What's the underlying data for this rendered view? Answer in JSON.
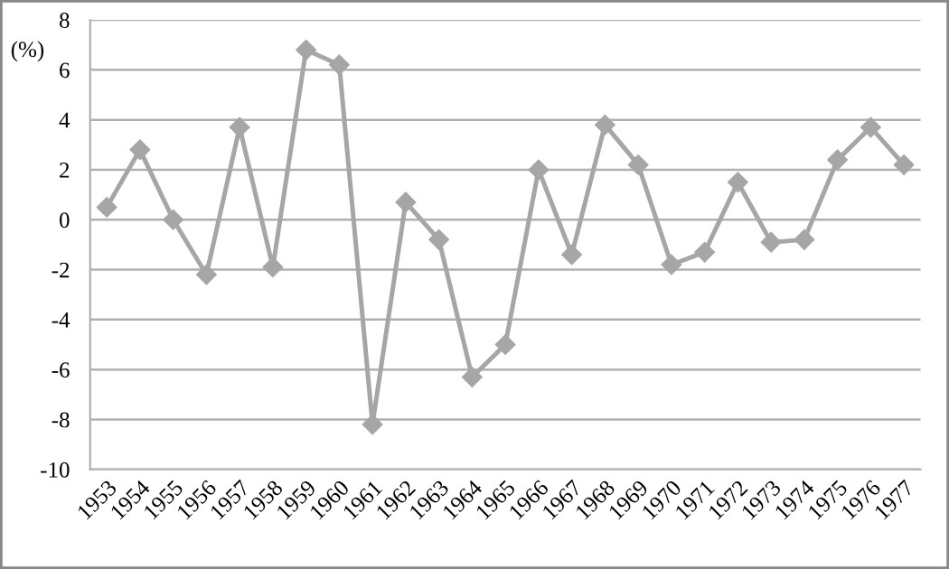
{
  "chart_data": {
    "type": "line",
    "ylabel": "(%)",
    "categories": [
      "1953",
      "1954",
      "1955",
      "1956",
      "1957",
      "1958",
      "1959",
      "1960",
      "1961",
      "1962",
      "1963",
      "1964",
      "1965",
      "1966",
      "1967",
      "1968",
      "1969",
      "1970",
      "1971",
      "1972",
      "1973",
      "1974",
      "1975",
      "1976",
      "1977"
    ],
    "series": [
      {
        "color": "#a6a6a6",
        "values": [
          0.5,
          2.8,
          0,
          -2.2,
          3.7,
          -1.9,
          6.8,
          6.2,
          -8.2,
          0.7,
          -0.8,
          -6.3,
          -5.0,
          2.0,
          -1.4,
          3.8,
          2.2,
          -1.8,
          -1.3,
          1.5,
          -0.9,
          -0.8,
          2.4,
          3.7,
          2.2
        ]
      }
    ],
    "ylim": [
      -10,
      8
    ],
    "yticks": [
      -10,
      -8,
      -6,
      -4,
      -2,
      0,
      2,
      4,
      6,
      8
    ],
    "grid": "y",
    "marker": "diamond",
    "line_style": "solid",
    "legend": false
  }
}
